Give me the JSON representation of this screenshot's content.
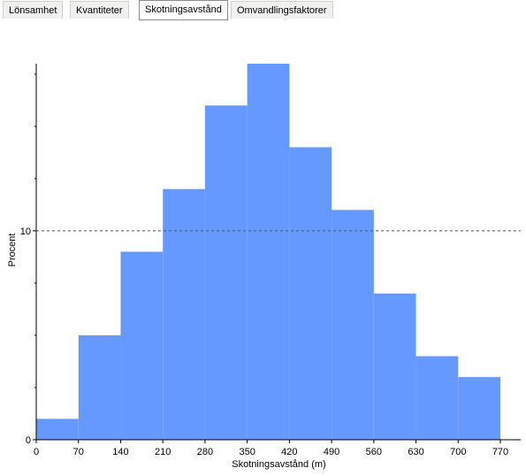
{
  "tabs": [
    {
      "label": "Lönsamhet",
      "active": false
    },
    {
      "label": "Kvantiteter",
      "active": false
    },
    {
      "label": "Skotningsavstånd",
      "active": true
    },
    {
      "label": "Omvandlingsfaktorer",
      "active": false
    }
  ],
  "colors": {
    "bar": "#6699ff",
    "refline": "#555555"
  },
  "chart_data": {
    "type": "bar",
    "title": "",
    "xlabel": "Skotningsavstånd (m)",
    "ylabel": "Procent",
    "bin_edges": [
      0,
      70,
      140,
      210,
      280,
      350,
      420,
      490,
      560,
      630,
      700,
      770
    ],
    "values": [
      1,
      5,
      9,
      12,
      16,
      18,
      14,
      11,
      7,
      4,
      3
    ],
    "xlim": [
      0,
      770
    ],
    "ylim": [
      0,
      18
    ],
    "x_ticks": [
      "0",
      "70",
      "140",
      "210",
      "280",
      "350",
      "420",
      "490",
      "560",
      "630",
      "700",
      "770"
    ],
    "y_ticks": [
      "0",
      "10"
    ],
    "reference_line_y": 10,
    "grid": false
  }
}
